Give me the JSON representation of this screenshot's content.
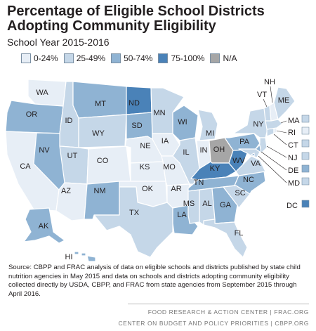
{
  "title": "Percentage of Eligible School Districts Adopting Community Eligibility",
  "subtitle": "School Year 2015-2016",
  "colors": {
    "c1": "#e7eef6",
    "c2": "#c5d7e8",
    "c3": "#8fb3d3",
    "c4": "#4a82b8",
    "na": "#a6a6a6",
    "border": "#ffffff"
  },
  "legend": [
    {
      "label": "0-24%",
      "color_key": "c1"
    },
    {
      "label": "25-49%",
      "color_key": "c2"
    },
    {
      "label": "50-74%",
      "color_key": "c3"
    },
    {
      "label": "75-100%",
      "color_key": "c4"
    },
    {
      "label": "N/A",
      "color_key": "na"
    }
  ],
  "states": {
    "WA": "c1",
    "OR": "c3",
    "CA": "c1",
    "NV": "c3",
    "ID": "c2",
    "MT": "c3",
    "WY": "c2",
    "UT": "c2",
    "AZ": "c1",
    "CO": "c1",
    "NM": "c3",
    "TX": "c2",
    "ND": "c4",
    "SD": "c3",
    "NE": "c1",
    "KS": "c1",
    "OK": "c1",
    "MN": "c2",
    "IA": "c1",
    "MO": "c1",
    "AR": "c1",
    "LA": "c3",
    "WI": "c3",
    "IL": "c2",
    "MI": "c2",
    "IN": "c1",
    "OH": "na",
    "KY": "c4",
    "TN": "c3",
    "MS": "c2",
    "AL": "c2",
    "GA": "c3",
    "FL": "c2",
    "SC": "c2",
    "NC": "c3",
    "VA": "c2",
    "WV": "c4",
    "PA": "c3",
    "NY": "c2",
    "VT": "c2",
    "NH": "c1",
    "ME": "c2",
    "MA": "c2",
    "RI": "c1",
    "CT": "c2",
    "NJ": "c2",
    "DE": "c3",
    "MD": "c2",
    "DC": "c4",
    "AK": "c3",
    "HI": "c3"
  },
  "small_state_labels": [
    "NH",
    "VT",
    "MA",
    "RI",
    "CT",
    "NJ",
    "DE",
    "MD",
    "DC"
  ],
  "source_note": "Source: CBPP and FRAC analysis of data on eligible schools and districts published by state child nutrition agencies in May 2015 and data on schools and districts adopting community eligibility collected directly by USDA, CBPP, and FRAC from state agencies from September 2015 through April 2016.",
  "footer_line1": "FOOD RESEARCH & ACTION CENTER | FRAC.ORG",
  "footer_line2": "CENTER ON BUDGET AND POLICY PRIORITIES | CBPP.ORG"
}
